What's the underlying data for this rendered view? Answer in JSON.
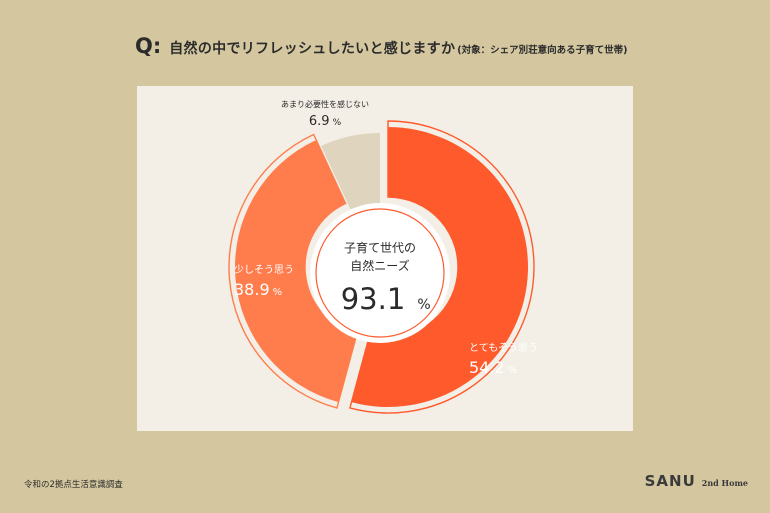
{
  "header": {
    "q_mark": "Q:",
    "question": "自然の中でリフレッシュしたいと感じますか",
    "subject": "(対象：シェア別荘意向ある子育て世帯)"
  },
  "center": {
    "line1": "子育て世代の",
    "line2": "自然ニーズ",
    "value": "93.1",
    "unit": "%"
  },
  "chart_data": {
    "type": "pie",
    "variant": "donut",
    "unit": "%",
    "start": "top",
    "direction": "clockwise",
    "slices": [
      {
        "label": "とてもそう思う",
        "value": 54.2,
        "color": "#ff5a2c"
      },
      {
        "label": "少しそう思う",
        "value": 38.9,
        "color": "#ff7c4c"
      },
      {
        "label": "あまり必要性を感じない",
        "value": 6.9,
        "color": "#dfd4bd"
      }
    ]
  },
  "footer": {
    "source": "令和の2拠点生活意識調査",
    "brand": "SANU",
    "brand_sub": "2nd Home"
  }
}
